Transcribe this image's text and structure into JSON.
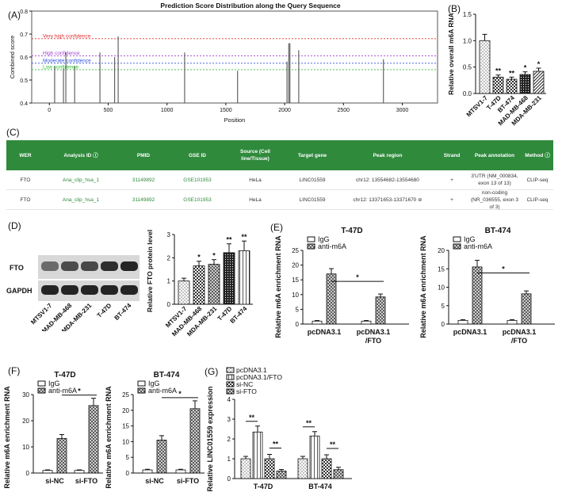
{
  "panel_labels": {
    "a": "(A)",
    "b": "(B)",
    "c": "(C)",
    "d": "(D)",
    "e": "(E)",
    "f": "(F)",
    "g": "(G)"
  },
  "colors": {
    "red": "#e03030",
    "purple": "#a040d0",
    "blue": "#3050e0",
    "green": "#30c030",
    "table_header": "#2f8a3c"
  },
  "chart_data": [
    {
      "id": "A",
      "type": "bar",
      "title": "Prediction Score Distribution along the Query Sequence",
      "xlabel": "Position",
      "ylabel": "Combined score",
      "xlim": [
        -150,
        3300
      ],
      "ylim": [
        0.4,
        0.8
      ],
      "xticks": [
        0,
        500,
        1000,
        1500,
        2000,
        2500,
        3000
      ],
      "yticks": [
        0.4,
        0.5,
        0.6,
        0.7,
        0.8
      ],
      "thresholds": [
        {
          "label": "Very high confidence",
          "value": 0.68,
          "color": "#e03030"
        },
        {
          "label": "High confidence",
          "value": 0.605,
          "color": "#a040d0"
        },
        {
          "label": "Moderate confidence",
          "value": 0.573,
          "color": "#3050e0"
        },
        {
          "label": "Low confidence",
          "value": 0.545,
          "color": "#30c030"
        }
      ],
      "x": [
        45,
        120,
        140,
        215,
        430,
        555,
        585,
        1150,
        1600,
        2020,
        2035,
        2045,
        2120,
        2840
      ],
      "values": [
        0.56,
        0.55,
        0.62,
        0.56,
        0.62,
        0.6,
        0.69,
        0.62,
        0.54,
        0.58,
        0.66,
        0.66,
        0.63,
        0.59
      ]
    },
    {
      "id": "B",
      "type": "bar",
      "ylabel": "Relative overall m6A RNA",
      "ylim": [
        0,
        1.5
      ],
      "yticks": [
        0,
        0.5,
        1.0,
        1.5
      ],
      "categories": [
        "MTSV1-7",
        "T-47D",
        "BT-474",
        "MAD-MB-468",
        "MDA-MB-231"
      ],
      "values": [
        1.0,
        0.31,
        0.27,
        0.36,
        0.42
      ],
      "errors": [
        0.12,
        0.04,
        0.04,
        0.05,
        0.06
      ],
      "annotations": [
        "",
        "**",
        "**",
        "*",
        "*"
      ]
    },
    {
      "id": "D",
      "type": "bar",
      "ylabel": "Relative FTO protein level",
      "ylim": [
        0,
        3
      ],
      "yticks": [
        0,
        1,
        2,
        3
      ],
      "categories": [
        "MTSV1-7",
        "MAD-MB-468",
        "MDA-MB-231",
        "T-47D",
        "BT-474"
      ],
      "values": [
        1.0,
        1.65,
        1.72,
        2.22,
        2.3
      ],
      "errors": [
        0.12,
        0.2,
        0.2,
        0.38,
        0.42
      ],
      "annotations": [
        "",
        "*",
        "*",
        "**",
        "**"
      ],
      "blot_rows": [
        "FTO",
        "GAPDH"
      ]
    },
    {
      "id": "E1",
      "type": "bar",
      "title": "T-47D",
      "ylabel": "Relative m6A enrichment RNA",
      "ylim": [
        0,
        25
      ],
      "yticks": [
        0,
        5,
        10,
        15,
        20,
        25
      ],
      "categories": [
        "pcDNA3.1",
        "pcDNA3.1\n/FTO"
      ],
      "series": [
        {
          "name": "IgG",
          "values": [
            1.0,
            1.0
          ],
          "errors": [
            0.2,
            0.2
          ]
        },
        {
          "name": "anti-m6A",
          "values": [
            17,
            9.2
          ],
          "errors": [
            1.8,
            1.0
          ]
        }
      ],
      "significance": "*"
    },
    {
      "id": "E2",
      "type": "bar",
      "title": "BT-474",
      "ylabel": "Relative m6A enrichment RNA",
      "ylim": [
        0,
        20
      ],
      "yticks": [
        0,
        5,
        10,
        15,
        20
      ],
      "categories": [
        "pcDNA3.1",
        "pcDNA3.1\n/FTO"
      ],
      "series": [
        {
          "name": "IgG",
          "values": [
            1.0,
            1.0
          ],
          "errors": [
            0.2,
            0.2
          ]
        },
        {
          "name": "anti-m6A",
          "values": [
            15.5,
            8.2
          ],
          "errors": [
            1.8,
            0.8
          ]
        }
      ],
      "significance": "*"
    },
    {
      "id": "F1",
      "type": "bar",
      "title": "T-47D",
      "ylabel": "Relative m6A enrichment RNA",
      "ylim": [
        0,
        30
      ],
      "yticks": [
        0,
        10,
        20,
        30
      ],
      "categories": [
        "si-NC",
        "si-FTO"
      ],
      "series": [
        {
          "name": "IgG",
          "values": [
            1.0,
            1.0
          ],
          "errors": [
            0.2,
            0.2
          ]
        },
        {
          "name": "anti-m6A",
          "values": [
            13.2,
            25.8
          ],
          "errors": [
            1.5,
            2.8
          ]
        }
      ],
      "significance": "*"
    },
    {
      "id": "F2",
      "type": "bar",
      "title": "BT-474",
      "ylabel": "Relative m6A enrichment RNA",
      "ylim": [
        0,
        25
      ],
      "yticks": [
        0,
        5,
        10,
        15,
        20,
        25
      ],
      "categories": [
        "si-NC",
        "si-FTO"
      ],
      "series": [
        {
          "name": "IgG",
          "values": [
            1.0,
            1.0
          ],
          "errors": [
            0.2,
            0.2
          ]
        },
        {
          "name": "anti-m6A",
          "values": [
            10.5,
            20.5
          ],
          "errors": [
            1.4,
            2.5
          ]
        }
      ],
      "significance": "*"
    },
    {
      "id": "G",
      "type": "bar",
      "ylabel": "Relative LINC01559 expression",
      "ylim": [
        0,
        4
      ],
      "yticks": [
        0,
        1,
        2,
        3,
        4
      ],
      "categories": [
        "T-47D",
        "BT-474"
      ],
      "series": [
        {
          "name": "pcDNA3.1",
          "values": [
            1.0,
            1.0
          ],
          "errors": [
            0.12,
            0.12
          ]
        },
        {
          "name": "pcDNA3.1/FTO",
          "values": [
            2.35,
            2.15
          ],
          "errors": [
            0.3,
            0.22
          ]
        },
        {
          "name": "si-NC",
          "values": [
            1.0,
            1.0
          ],
          "errors": [
            0.22,
            0.2
          ]
        },
        {
          "name": "si-FTO",
          "values": [
            0.38,
            0.45
          ],
          "errors": [
            0.08,
            0.12
          ]
        }
      ],
      "significance": [
        "**",
        "**"
      ]
    }
  ],
  "table": {
    "headers": [
      "WER",
      "Analysis ID ⓘ",
      "PMID",
      "GSE ID",
      "Source (Cell line/Tissue)",
      "Target gene",
      "Peak region",
      "Strand",
      "Peak annotation",
      "Method ⓘ"
    ],
    "rows": [
      [
        "FTO",
        "Ana_clip_hsa_1",
        "31149892",
        "GSE101953",
        "HeLa",
        "LINC01559",
        "chr12: 13554682-13554680",
        "+",
        "3'UTR (NM_000834, exon 13 of 13)",
        "CLIP-seq"
      ],
      [
        "FTO",
        "Ana_clip_hsa_1",
        "31149892",
        "GSE101953",
        "HeLa",
        "LINC01559",
        "chr12: 13371653-13371670 ⊜",
        "+",
        "non-coding (NR_036555, exon 3 of 3)",
        "CLIP-seq"
      ]
    ]
  }
}
